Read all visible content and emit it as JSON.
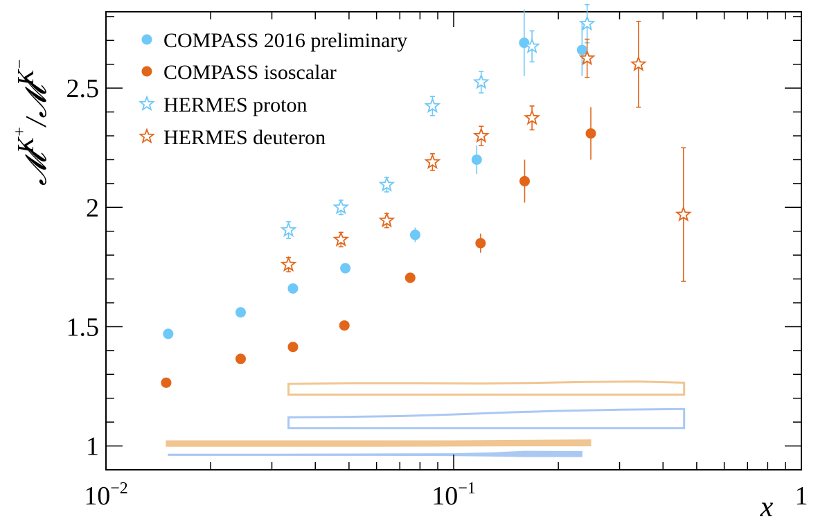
{
  "colors": {
    "compass_2016": "#6ec8f8",
    "compass_iso": "#e2661a",
    "hermes_proton": "#6ec8f8",
    "hermes_deuteron": "#e2661a",
    "band_orange": "#f0c590",
    "band_blue": "#a9c8f4",
    "axis": "#000000"
  },
  "chart_data": {
    "type": "scatter",
    "title": "",
    "xlabel": "x",
    "ylabel_parts": {
      "sym": "𝓜",
      "sup_plus": "K",
      "plus": "+",
      "slash": "/",
      "sup_minus": "K",
      "minus": "−"
    },
    "xscale": "log",
    "xlim": [
      0.01,
      1
    ],
    "ylim": [
      0.9,
      2.82
    ],
    "x_tick_labels": [
      {
        "value": 0.01,
        "base": "10",
        "exp": "−2"
      },
      {
        "value": 0.1,
        "base": "10",
        "exp": "−1"
      },
      {
        "value": 1,
        "base": "1",
        "exp": ""
      }
    ],
    "y_ticks": [
      1,
      1.5,
      2,
      2.5
    ],
    "y_tick_labels": [
      "1",
      "1.5",
      "2",
      "2.5"
    ],
    "grid": false,
    "legend_position": "top-left",
    "series": [
      {
        "name": "COMPASS 2016 preliminary",
        "marker": "circle",
        "color_key": "compass_2016",
        "points": [
          {
            "x": 0.0151,
            "y": 1.47,
            "err": 0.0
          },
          {
            "x": 0.0244,
            "y": 1.56,
            "err": 0.0
          },
          {
            "x": 0.0345,
            "y": 1.66,
            "err": 0.015
          },
          {
            "x": 0.0488,
            "y": 1.745,
            "err": 0.02
          },
          {
            "x": 0.0775,
            "y": 1.885,
            "err": 0.03
          },
          {
            "x": 0.1165,
            "y": 2.2,
            "err": 0.06
          },
          {
            "x": 0.1595,
            "y": 2.69,
            "err": 0.14
          },
          {
            "x": 0.234,
            "y": 2.66,
            "err": 0.11
          }
        ]
      },
      {
        "name": "COMPASS isoscalar",
        "marker": "circle",
        "color_key": "compass_iso",
        "points": [
          {
            "x": 0.0149,
            "y": 1.265,
            "err": 0.0
          },
          {
            "x": 0.0244,
            "y": 1.365,
            "err": 0.0
          },
          {
            "x": 0.0345,
            "y": 1.415,
            "err": 0.0
          },
          {
            "x": 0.0485,
            "y": 1.505,
            "err": 0.0
          },
          {
            "x": 0.075,
            "y": 1.705,
            "err": 0.0
          },
          {
            "x": 0.1195,
            "y": 1.85,
            "err": 0.04
          },
          {
            "x": 0.16,
            "y": 2.11,
            "err": 0.09
          },
          {
            "x": 0.248,
            "y": 2.31,
            "err": 0.11
          }
        ]
      },
      {
        "name": "HERMES proton",
        "marker": "star",
        "color_key": "hermes_proton",
        "points": [
          {
            "x": 0.0335,
            "y": 1.905,
            "err": 0.035
          },
          {
            "x": 0.0474,
            "y": 2.0,
            "err": 0.03
          },
          {
            "x": 0.0642,
            "y": 2.095,
            "err": 0.03
          },
          {
            "x": 0.0869,
            "y": 2.425,
            "err": 0.04
          },
          {
            "x": 0.12,
            "y": 2.525,
            "err": 0.045
          },
          {
            "x": 0.168,
            "y": 2.675,
            "err": 0.065
          },
          {
            "x": 0.242,
            "y": 2.77,
            "err": 0.08
          }
        ]
      },
      {
        "name": "HERMES deuteron",
        "marker": "star",
        "color_key": "hermes_deuteron",
        "points": [
          {
            "x": 0.0335,
            "y": 1.76,
            "err": 0.03
          },
          {
            "x": 0.0474,
            "y": 1.865,
            "err": 0.03
          },
          {
            "x": 0.0642,
            "y": 1.945,
            "err": 0.03
          },
          {
            "x": 0.0869,
            "y": 2.19,
            "err": 0.035
          },
          {
            "x": 0.12,
            "y": 2.3,
            "err": 0.04
          },
          {
            "x": 0.168,
            "y": 2.375,
            "err": 0.05
          },
          {
            "x": 0.242,
            "y": 2.625,
            "err": 0.08
          },
          {
            "x": 0.34,
            "y": 2.6,
            "err": 0.18
          },
          {
            "x": 0.458,
            "y": 1.97,
            "err": 0.28
          }
        ]
      }
    ],
    "systematic_bands": [
      {
        "color_key": "band_orange",
        "style": "outline",
        "x": [
          0.0335,
          0.05,
          0.08,
          0.12,
          0.17,
          0.24,
          0.34,
          0.46
        ],
        "lower": [
          1.215,
          1.215,
          1.215,
          1.215,
          1.215,
          1.215,
          1.215,
          1.215
        ],
        "upper": [
          1.26,
          1.263,
          1.263,
          1.262,
          1.264,
          1.268,
          1.27,
          1.265
        ]
      },
      {
        "color_key": "band_blue",
        "style": "outline",
        "x": [
          0.0335,
          0.05,
          0.07,
          0.1,
          0.14,
          0.2,
          0.3,
          0.46
        ],
        "lower": [
          1.075,
          1.075,
          1.075,
          1.075,
          1.075,
          1.075,
          1.075,
          1.075
        ],
        "upper": [
          1.12,
          1.122,
          1.125,
          1.132,
          1.14,
          1.147,
          1.152,
          1.155
        ]
      },
      {
        "color_key": "band_orange",
        "style": "filled",
        "x": [
          0.0149,
          0.03,
          0.06,
          0.1,
          0.16,
          0.248
        ],
        "lower": [
          0.998,
          0.998,
          0.998,
          0.999,
          1.0,
          1.0
        ],
        "upper": [
          1.022,
          1.022,
          1.022,
          1.022,
          1.024,
          1.026
        ]
      },
      {
        "color_key": "band_blue",
        "style": "filled",
        "x": [
          0.0151,
          0.03,
          0.06,
          0.1,
          0.13,
          0.16,
          0.234
        ],
        "lower": [
          0.96,
          0.96,
          0.96,
          0.959,
          0.957,
          0.955,
          0.955
        ],
        "upper": [
          0.966,
          0.966,
          0.967,
          0.968,
          0.972,
          0.978,
          0.977
        ]
      }
    ]
  }
}
